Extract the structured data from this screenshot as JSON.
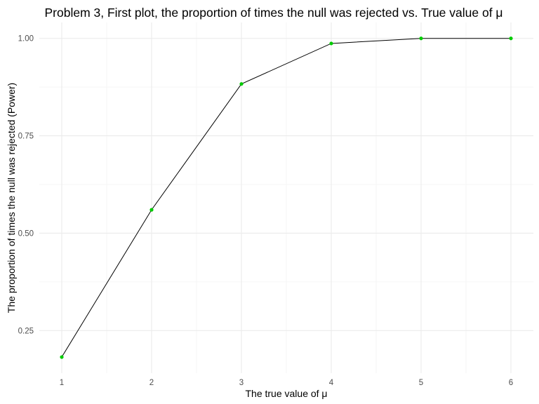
{
  "chart_data": {
    "type": "line",
    "title": "Problem 3, First plot, the proportion of times the null was rejected vs. True value of μ",
    "xlabel": "The true value of μ",
    "ylabel": "The proportion of times the null was rejected (Power)",
    "x": [
      1,
      2,
      3,
      4,
      5,
      6
    ],
    "y": [
      0.182,
      0.56,
      0.883,
      0.987,
      1.0,
      1.0
    ],
    "x_ticks": [
      1,
      2,
      3,
      4,
      5,
      6
    ],
    "x_tick_labels": [
      "1",
      "2",
      "3",
      "4",
      "5",
      "6"
    ],
    "y_ticks": [
      0.25,
      0.5,
      0.75,
      1.0
    ],
    "y_tick_labels": [
      "0.25",
      "0.50",
      "0.75",
      "1.00"
    ],
    "xlim": [
      0.75,
      6.25
    ],
    "ylim": [
      0.1407,
      1.0409
    ],
    "grid": true,
    "line_color": "#000000",
    "point_color": "#00cc00",
    "background": "#ffffff"
  }
}
